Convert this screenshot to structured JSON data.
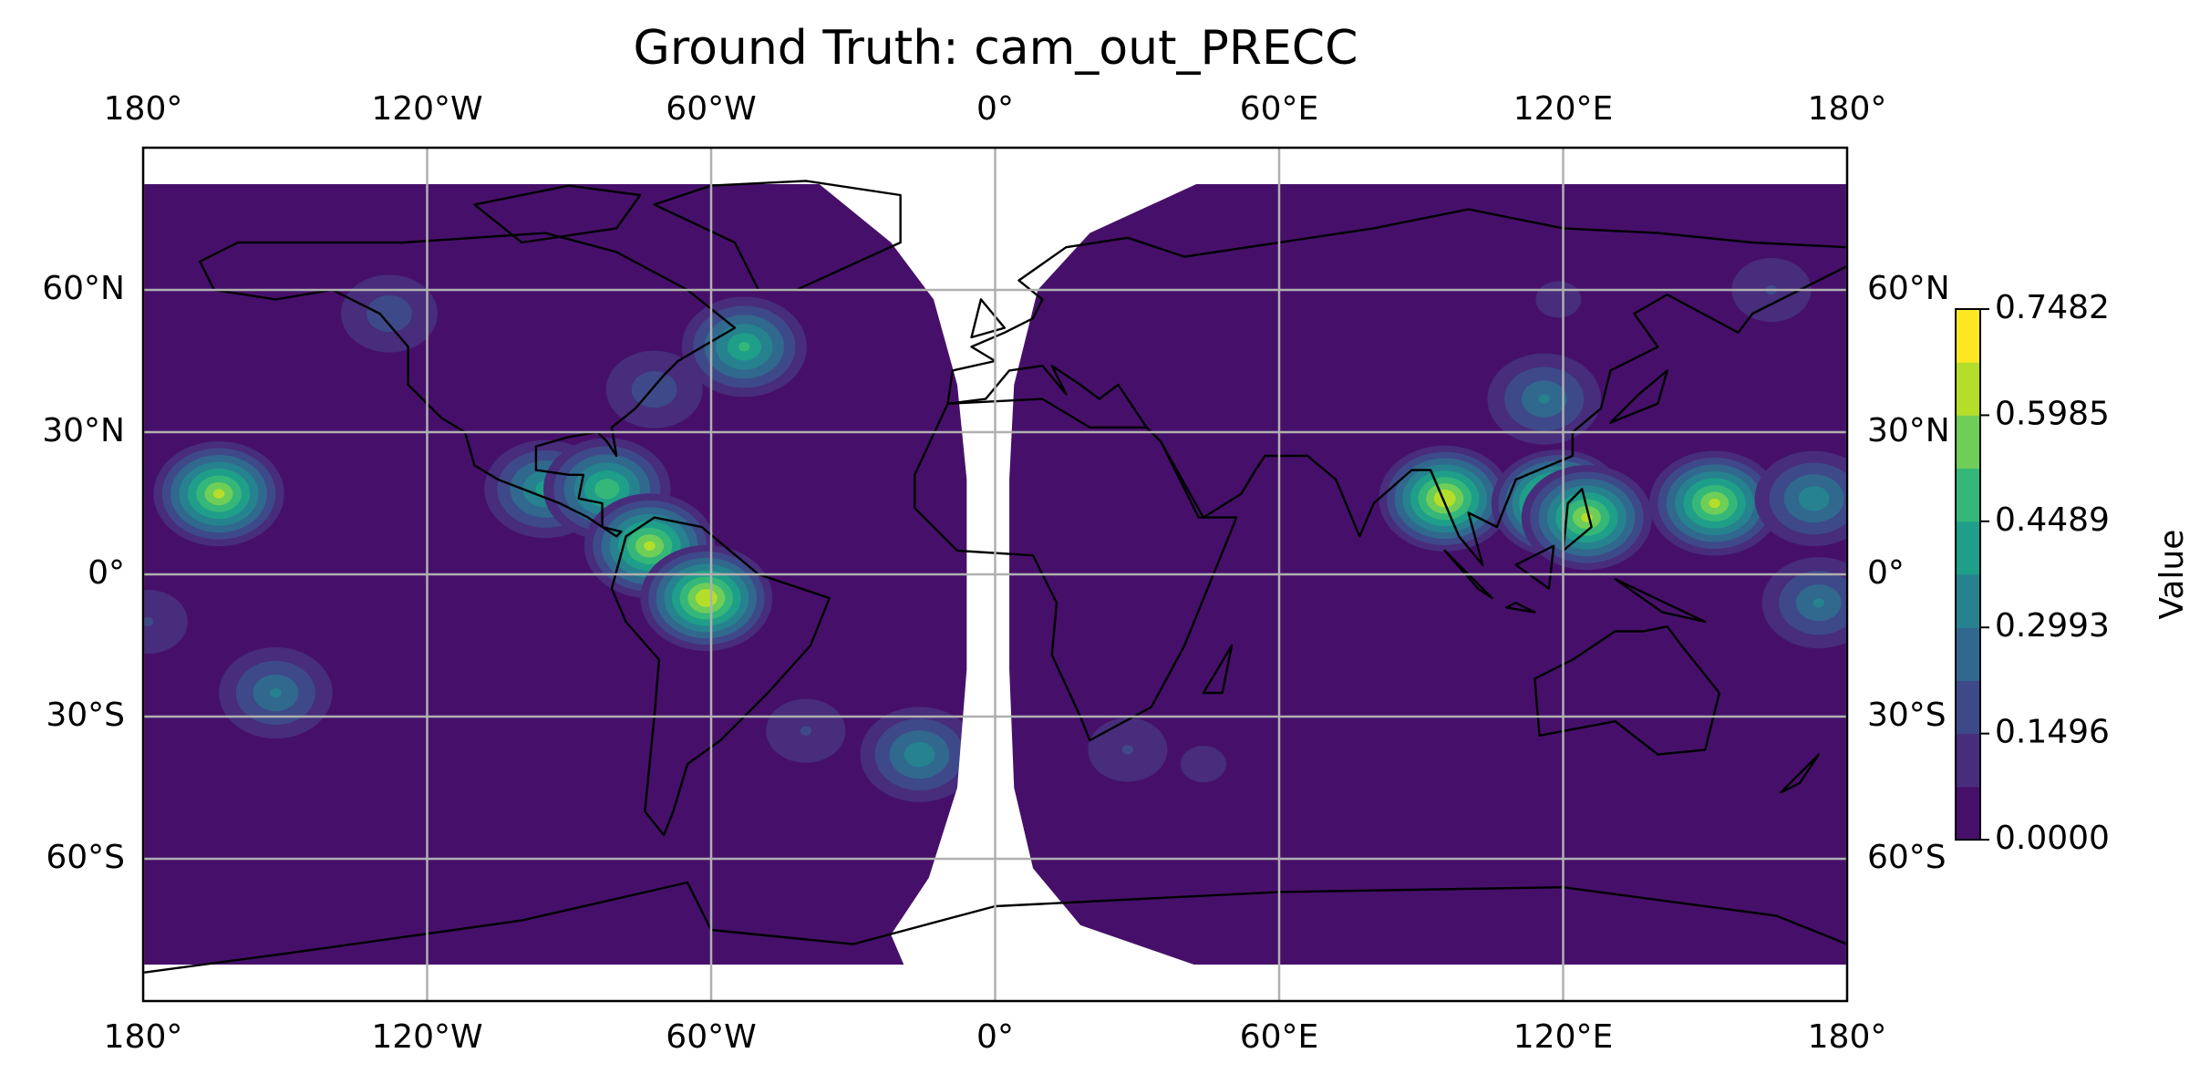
{
  "chart_data": {
    "type": "contour-map",
    "title": "Ground Truth: cam_out_PRECC",
    "colorbar_label": "Value",
    "xlim": [
      -180,
      180
    ],
    "ylim": [
      -90,
      90
    ],
    "xticks": [
      {
        "value": -180,
        "label": "180°"
      },
      {
        "value": -120,
        "label": "120°W"
      },
      {
        "value": -60,
        "label": "60°W"
      },
      {
        "value": 0,
        "label": "0°"
      },
      {
        "value": 60,
        "label": "60°E"
      },
      {
        "value": 120,
        "label": "120°E"
      },
      {
        "value": 180,
        "label": "180°"
      }
    ],
    "yticks": [
      {
        "value": -60,
        "label": "60°S"
      },
      {
        "value": -30,
        "label": "30°S"
      },
      {
        "value": 0,
        "label": "0°"
      },
      {
        "value": 30,
        "label": "30°N"
      },
      {
        "value": 60,
        "label": "60°N"
      }
    ],
    "grid": true,
    "clim": [
      0,
      0.7482
    ],
    "cticks": [
      {
        "value": 0,
        "label": "0.0000"
      },
      {
        "value": 0.1496,
        "label": "0.1496"
      },
      {
        "value": 0.2993,
        "label": "0.2993"
      },
      {
        "value": 0.4489,
        "label": "0.4489"
      },
      {
        "value": 0.5985,
        "label": "0.5985"
      },
      {
        "value": 0.7482,
        "label": "0.7482"
      }
    ],
    "colors": [
      "#46106a",
      "#472d7b",
      "#3e4989",
      "#31688e",
      "#26828e",
      "#1f9e89",
      "#35b779",
      "#6ece58",
      "#b5de2b",
      "#fde725"
    ],
    "x": [
      -164,
      -152,
      -128,
      -95,
      -82,
      -73,
      -61,
      -53,
      -72,
      -16,
      -40,
      28,
      44,
      95,
      119,
      125,
      152,
      173,
      174,
      116,
      164,
      119,
      -179
    ],
    "y": [
      17,
      -25,
      55,
      18,
      18,
      6,
      -5,
      48,
      39,
      -38,
      -33,
      -37,
      -40,
      16,
      15,
      12,
      15,
      16,
      -6,
      37,
      60,
      58,
      -10
    ],
    "values": [
      0.6,
      0.3,
      0.2,
      0.4,
      0.5,
      0.6,
      0.65,
      0.45,
      0.2,
      0.35,
      0.15,
      0.15,
      0.1,
      0.65,
      0.74,
      0.6,
      0.6,
      0.35,
      0.3,
      0.3,
      0.15,
      0.1,
      0.15
    ]
  }
}
